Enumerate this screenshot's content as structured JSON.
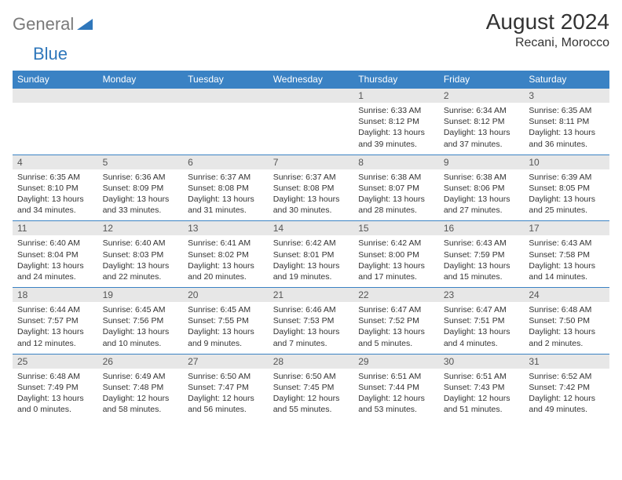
{
  "brand": {
    "word1": "General",
    "word2": "Blue"
  },
  "title": "August 2024",
  "location": "Recani, Morocco",
  "colors": {
    "header_bg": "#3a82c4",
    "header_text": "#ffffff",
    "daynum_bg": "#e7e7e7",
    "row_border": "#3a82c4",
    "brand_gray": "#7a7a7a",
    "brand_blue": "#2f77bb"
  },
  "weekdays": [
    "Sunday",
    "Monday",
    "Tuesday",
    "Wednesday",
    "Thursday",
    "Friday",
    "Saturday"
  ],
  "weeks": [
    [
      null,
      null,
      null,
      null,
      {
        "n": "1",
        "sunrise": "6:33 AM",
        "sunset": "8:12 PM",
        "dl1": "Daylight: 13 hours",
        "dl2": "and 39 minutes."
      },
      {
        "n": "2",
        "sunrise": "6:34 AM",
        "sunset": "8:12 PM",
        "dl1": "Daylight: 13 hours",
        "dl2": "and 37 minutes."
      },
      {
        "n": "3",
        "sunrise": "6:35 AM",
        "sunset": "8:11 PM",
        "dl1": "Daylight: 13 hours",
        "dl2": "and 36 minutes."
      }
    ],
    [
      {
        "n": "4",
        "sunrise": "6:35 AM",
        "sunset": "8:10 PM",
        "dl1": "Daylight: 13 hours",
        "dl2": "and 34 minutes."
      },
      {
        "n": "5",
        "sunrise": "6:36 AM",
        "sunset": "8:09 PM",
        "dl1": "Daylight: 13 hours",
        "dl2": "and 33 minutes."
      },
      {
        "n": "6",
        "sunrise": "6:37 AM",
        "sunset": "8:08 PM",
        "dl1": "Daylight: 13 hours",
        "dl2": "and 31 minutes."
      },
      {
        "n": "7",
        "sunrise": "6:37 AM",
        "sunset": "8:08 PM",
        "dl1": "Daylight: 13 hours",
        "dl2": "and 30 minutes."
      },
      {
        "n": "8",
        "sunrise": "6:38 AM",
        "sunset": "8:07 PM",
        "dl1": "Daylight: 13 hours",
        "dl2": "and 28 minutes."
      },
      {
        "n": "9",
        "sunrise": "6:38 AM",
        "sunset": "8:06 PM",
        "dl1": "Daylight: 13 hours",
        "dl2": "and 27 minutes."
      },
      {
        "n": "10",
        "sunrise": "6:39 AM",
        "sunset": "8:05 PM",
        "dl1": "Daylight: 13 hours",
        "dl2": "and 25 minutes."
      }
    ],
    [
      {
        "n": "11",
        "sunrise": "6:40 AM",
        "sunset": "8:04 PM",
        "dl1": "Daylight: 13 hours",
        "dl2": "and 24 minutes."
      },
      {
        "n": "12",
        "sunrise": "6:40 AM",
        "sunset": "8:03 PM",
        "dl1": "Daylight: 13 hours",
        "dl2": "and 22 minutes."
      },
      {
        "n": "13",
        "sunrise": "6:41 AM",
        "sunset": "8:02 PM",
        "dl1": "Daylight: 13 hours",
        "dl2": "and 20 minutes."
      },
      {
        "n": "14",
        "sunrise": "6:42 AM",
        "sunset": "8:01 PM",
        "dl1": "Daylight: 13 hours",
        "dl2": "and 19 minutes."
      },
      {
        "n": "15",
        "sunrise": "6:42 AM",
        "sunset": "8:00 PM",
        "dl1": "Daylight: 13 hours",
        "dl2": "and 17 minutes."
      },
      {
        "n": "16",
        "sunrise": "6:43 AM",
        "sunset": "7:59 PM",
        "dl1": "Daylight: 13 hours",
        "dl2": "and 15 minutes."
      },
      {
        "n": "17",
        "sunrise": "6:43 AM",
        "sunset": "7:58 PM",
        "dl1": "Daylight: 13 hours",
        "dl2": "and 14 minutes."
      }
    ],
    [
      {
        "n": "18",
        "sunrise": "6:44 AM",
        "sunset": "7:57 PM",
        "dl1": "Daylight: 13 hours",
        "dl2": "and 12 minutes."
      },
      {
        "n": "19",
        "sunrise": "6:45 AM",
        "sunset": "7:56 PM",
        "dl1": "Daylight: 13 hours",
        "dl2": "and 10 minutes."
      },
      {
        "n": "20",
        "sunrise": "6:45 AM",
        "sunset": "7:55 PM",
        "dl1": "Daylight: 13 hours",
        "dl2": "and 9 minutes."
      },
      {
        "n": "21",
        "sunrise": "6:46 AM",
        "sunset": "7:53 PM",
        "dl1": "Daylight: 13 hours",
        "dl2": "and 7 minutes."
      },
      {
        "n": "22",
        "sunrise": "6:47 AM",
        "sunset": "7:52 PM",
        "dl1": "Daylight: 13 hours",
        "dl2": "and 5 minutes."
      },
      {
        "n": "23",
        "sunrise": "6:47 AM",
        "sunset": "7:51 PM",
        "dl1": "Daylight: 13 hours",
        "dl2": "and 4 minutes."
      },
      {
        "n": "24",
        "sunrise": "6:48 AM",
        "sunset": "7:50 PM",
        "dl1": "Daylight: 13 hours",
        "dl2": "and 2 minutes."
      }
    ],
    [
      {
        "n": "25",
        "sunrise": "6:48 AM",
        "sunset": "7:49 PM",
        "dl1": "Daylight: 13 hours",
        "dl2": "and 0 minutes."
      },
      {
        "n": "26",
        "sunrise": "6:49 AM",
        "sunset": "7:48 PM",
        "dl1": "Daylight: 12 hours",
        "dl2": "and 58 minutes."
      },
      {
        "n": "27",
        "sunrise": "6:50 AM",
        "sunset": "7:47 PM",
        "dl1": "Daylight: 12 hours",
        "dl2": "and 56 minutes."
      },
      {
        "n": "28",
        "sunrise": "6:50 AM",
        "sunset": "7:45 PM",
        "dl1": "Daylight: 12 hours",
        "dl2": "and 55 minutes."
      },
      {
        "n": "29",
        "sunrise": "6:51 AM",
        "sunset": "7:44 PM",
        "dl1": "Daylight: 12 hours",
        "dl2": "and 53 minutes."
      },
      {
        "n": "30",
        "sunrise": "6:51 AM",
        "sunset": "7:43 PM",
        "dl1": "Daylight: 12 hours",
        "dl2": "and 51 minutes."
      },
      {
        "n": "31",
        "sunrise": "6:52 AM",
        "sunset": "7:42 PM",
        "dl1": "Daylight: 12 hours",
        "dl2": "and 49 minutes."
      }
    ]
  ]
}
